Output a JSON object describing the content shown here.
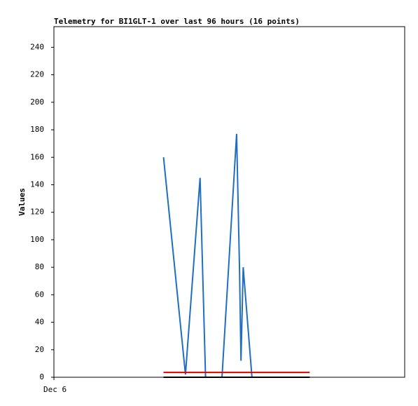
{
  "chart_data": {
    "type": "line",
    "title": "Telemetry for BI1GLT-1 over last 96 hours (16 points)",
    "y_label": "Values",
    "xlim": [
      0,
      96
    ],
    "xticks": [
      {
        "value": 0,
        "label": "Dec 6"
      }
    ],
    "ylim": [
      0,
      255
    ],
    "yticks": [
      0,
      20,
      40,
      60,
      80,
      100,
      120,
      140,
      160,
      180,
      200,
      220,
      240
    ],
    "series": [
      {
        "color": "#1f6fc0",
        "x": [
          30,
          36,
          40,
          41.5,
          46,
          50,
          50.8,
          51.2,
          51.8,
          54.2,
          58,
          62,
          66,
          68,
          69,
          70
        ],
        "values": [
          160,
          2,
          145,
          0,
          0,
          177,
          78,
          12,
          80,
          0,
          0,
          0,
          0,
          0,
          0,
          0
        ]
      },
      {
        "color": "#e00000",
        "x": [
          30,
          70
        ],
        "values": [
          3.5,
          3.5
        ]
      },
      {
        "color": "#000000",
        "x": [
          30,
          70
        ],
        "values": [
          0,
          0
        ]
      }
    ]
  }
}
